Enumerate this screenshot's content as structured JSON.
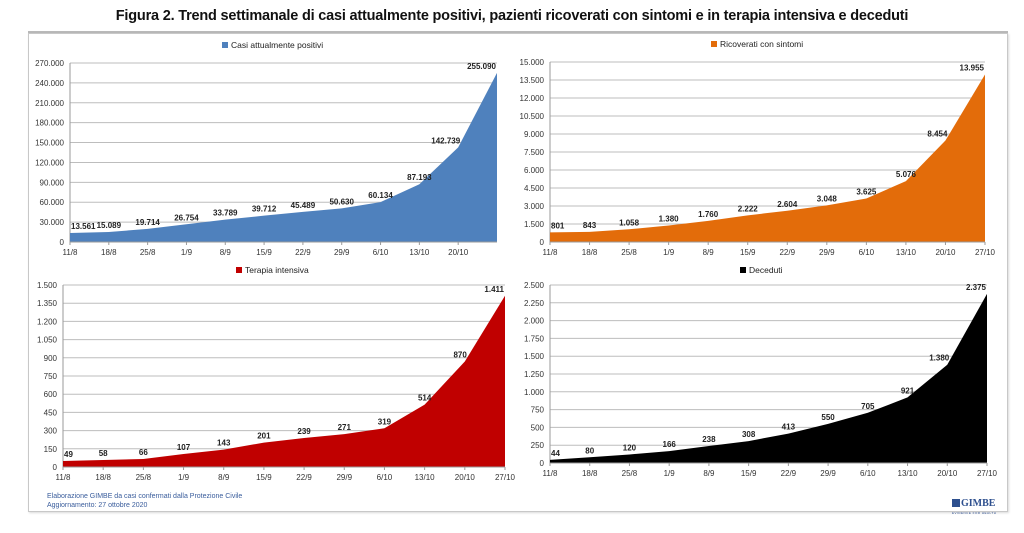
{
  "title": "Figura 2. Trend settimanale di casi attualmente positivi, pazienti ricoverati con sintomi e in terapia intensiva e deceduti",
  "footer": {
    "line1": "Elaborazione GIMBE da casi confermati dalla Protezione Civile",
    "line2": "Aggiornamento: 27 ottobre 2020"
  },
  "logo": {
    "name": "GIMBE",
    "tagline": "EVIDENCE FOR HEALTH"
  },
  "chart_data": [
    {
      "type": "area",
      "title": "",
      "legend": "Casi attualmente positivi",
      "legend_position": "top-center",
      "color": "#4f81bd",
      "categories": [
        "11/8",
        "18/8",
        "25/8",
        "1/9",
        "8/9",
        "15/9",
        "22/9",
        "29/9",
        "6/10",
        "13/10",
        "20/10",
        "27/10"
      ],
      "x_tick_labels": [
        "11/8",
        "18/8",
        "25/8",
        "1/9",
        "8/9",
        "15/9",
        "22/9",
        "29/9",
        "6/10",
        "13/10",
        "20/10",
        ""
      ],
      "values": [
        13561,
        15089,
        19714,
        26754,
        33789,
        39712,
        45489,
        50630,
        60134,
        87193,
        142739,
        255090
      ],
      "data_labels": [
        "13.561",
        "15.089",
        "19.714",
        "26.754",
        "33.789",
        "39.712",
        "45.489",
        "50.630",
        "60.134",
        "87.193",
        "142.739",
        "255.090"
      ],
      "ylim": [
        0,
        270000
      ],
      "yticks": [
        0,
        30000,
        60000,
        90000,
        120000,
        150000,
        180000,
        210000,
        240000,
        270000
      ],
      "ytick_labels": [
        "0",
        "30.000",
        "60.000",
        "90.000",
        "120.000",
        "150.000",
        "180.000",
        "210.000",
        "240.000",
        "270.000"
      ],
      "xlabel": "",
      "ylabel": "",
      "grid": true
    },
    {
      "type": "area",
      "title": "",
      "legend": "Ricoverati con sintomi",
      "legend_position": "top-center",
      "color": "#e36c0a",
      "categories": [
        "11/8",
        "18/8",
        "25/8",
        "1/9",
        "8/9",
        "15/9",
        "22/9",
        "29/9",
        "6/10",
        "13/10",
        "20/10",
        "27/10"
      ],
      "x_tick_labels": [
        "11/8",
        "18/8",
        "25/8",
        "1/9",
        "8/9",
        "15/9",
        "22/9",
        "29/9",
        "6/10",
        "13/10",
        "20/10",
        "27/10"
      ],
      "values": [
        801,
        843,
        1058,
        1380,
        1760,
        2222,
        2604,
        3048,
        3625,
        5076,
        8454,
        13955
      ],
      "data_labels": [
        "801",
        "843",
        "1.058",
        "1.380",
        "1.760",
        "2.222",
        "2.604",
        "3.048",
        "3.625",
        "5.076",
        "8.454",
        "13.955"
      ],
      "ylim": [
        0,
        15000
      ],
      "yticks": [
        0,
        1500,
        3000,
        4500,
        6000,
        7500,
        9000,
        10500,
        12000,
        13500,
        15000
      ],
      "ytick_labels": [
        "0",
        "1.500",
        "3.000",
        "4.500",
        "6.000",
        "7.500",
        "9.000",
        "10.500",
        "12.000",
        "13.500",
        "15.000"
      ],
      "xlabel": "",
      "ylabel": "",
      "grid": true
    },
    {
      "type": "area",
      "title": "",
      "legend": "Terapia intensiva",
      "legend_position": "top-center",
      "color": "#c00000",
      "categories": [
        "11/8",
        "18/8",
        "25/8",
        "1/9",
        "8/9",
        "15/9",
        "22/9",
        "29/9",
        "6/10",
        "13/10",
        "20/10",
        "27/10"
      ],
      "x_tick_labels": [
        "11/8",
        "18/8",
        "25/8",
        "1/9",
        "8/9",
        "15/9",
        "22/9",
        "29/9",
        "6/10",
        "13/10",
        "20/10",
        "27/10"
      ],
      "values": [
        49,
        58,
        66,
        107,
        143,
        201,
        239,
        271,
        319,
        514,
        870,
        1411
      ],
      "data_labels": [
        "49",
        "58",
        "66",
        "107",
        "143",
        "201",
        "239",
        "271",
        "319",
        "514",
        "870",
        "1.411"
      ],
      "ylim": [
        0,
        1500
      ],
      "yticks": [
        0,
        150,
        300,
        450,
        600,
        750,
        900,
        1050,
        1200,
        1350,
        1500
      ],
      "ytick_labels": [
        "0",
        "150",
        "300",
        "450",
        "600",
        "750",
        "900",
        "1.050",
        "1.200",
        "1.350",
        "1.500"
      ],
      "xlabel": "",
      "ylabel": "",
      "grid": true
    },
    {
      "type": "area",
      "title": "",
      "legend": "Deceduti",
      "legend_position": "top-center",
      "color": "#000000",
      "categories": [
        "11/8",
        "18/8",
        "25/8",
        "1/9",
        "8/9",
        "15/9",
        "22/9",
        "29/9",
        "6/10",
        "13/10",
        "20/10",
        "27/10"
      ],
      "x_tick_labels": [
        "11/8",
        "18/8",
        "25/8",
        "1/9",
        "8/9",
        "15/9",
        "22/9",
        "29/9",
        "6/10",
        "13/10",
        "20/10",
        "27/10"
      ],
      "values": [
        44,
        80,
        120,
        166,
        238,
        308,
        413,
        550,
        705,
        921,
        1380,
        2375
      ],
      "data_labels": [
        "44",
        "80",
        "120",
        "166",
        "238",
        "308",
        "413",
        "550",
        "705",
        "921",
        "1.380",
        "2.375"
      ],
      "ylim": [
        0,
        2500
      ],
      "yticks": [
        0,
        250,
        500,
        750,
        1000,
        1250,
        1500,
        1750,
        2000,
        2250,
        2500
      ],
      "ytick_labels": [
        "0",
        "250",
        "500",
        "750",
        "1.000",
        "1.250",
        "1.500",
        "1.750",
        "2.000",
        "2.250",
        "2.500"
      ],
      "xlabel": "",
      "ylabel": "",
      "grid": true
    }
  ]
}
